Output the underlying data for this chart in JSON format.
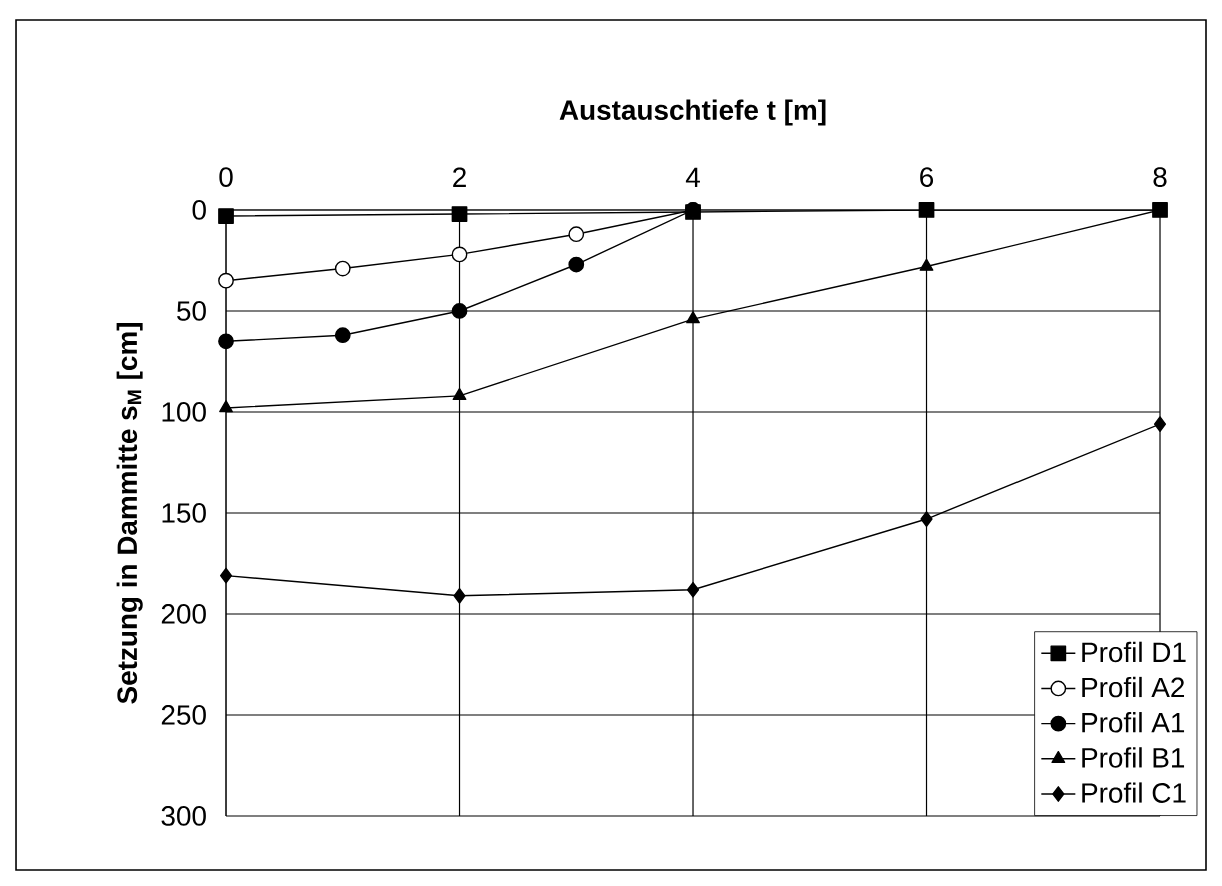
{
  "chart_data": {
    "type": "line",
    "xlabel": "**Austauschtiefe t [m]**",
    "ylabel": "**Setzung in Dammitte s$_{M}$ [cm]**",
    "xlim": [
      0,
      8
    ],
    "xticks": [
      0,
      2,
      4,
      6,
      8
    ],
    "ylim": [
      300,
      0
    ],
    "yticks": [
      0,
      50,
      100,
      150,
      200,
      250,
      300
    ],
    "grid": true,
    "legend": "bottom right",
    "line_style": "solid",
    "series": [
      {
        "name": "Profil D1",
        "color": "#000000",
        "marker": "square",
        "x": [
          0,
          2,
          4,
          6,
          8
        ],
        "values": [
          3,
          2,
          1,
          0,
          0
        ]
      },
      {
        "name": "Profil A2",
        "color": "#ffffff",
        "marker": "circle",
        "x": [
          0,
          1,
          2,
          3,
          4
        ],
        "values": [
          35,
          29,
          22,
          12,
          0
        ]
      },
      {
        "name": "Profil A1",
        "color": "#000000",
        "marker": "circle",
        "x": [
          0,
          1,
          2,
          3,
          4
        ],
        "values": [
          65,
          62,
          50,
          27,
          0
        ]
      },
      {
        "name": "Profil B1",
        "color": "#000000",
        "marker": "triangle",
        "x": [
          0,
          2,
          4,
          6,
          8
        ],
        "values": [
          98,
          92,
          54,
          28,
          0
        ]
      },
      {
        "name": "Profil C1",
        "color": "#000000",
        "marker": "diamond",
        "x": [
          0,
          2,
          4,
          6,
          8
        ],
        "values": [
          181,
          191,
          188,
          153,
          106
        ]
      }
    ]
  }
}
